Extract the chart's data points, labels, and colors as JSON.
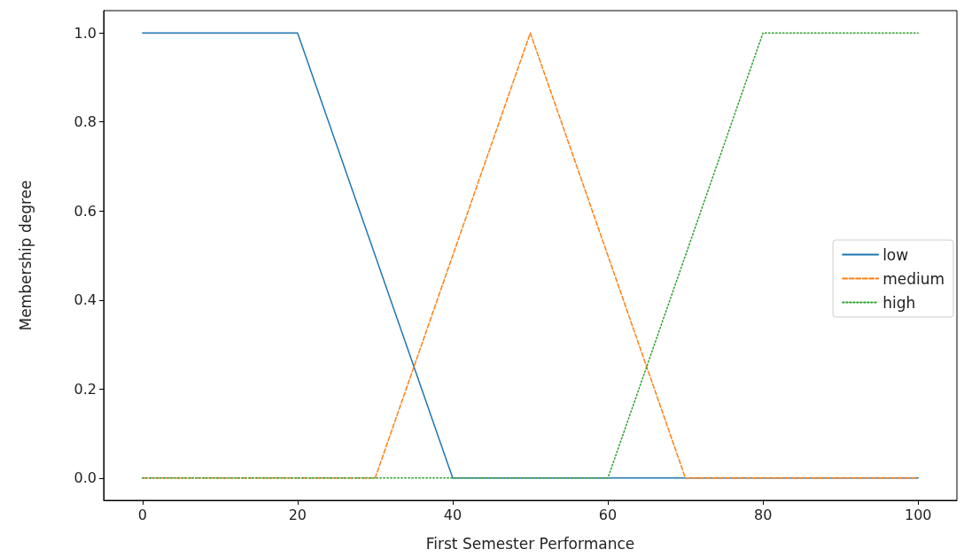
{
  "chart_data": {
    "type": "line",
    "xlabel": "First Semester Performance",
    "ylabel": "Membership degree",
    "series": [
      {
        "name": "low",
        "color": "#1f77b4",
        "line_style": "solid",
        "x": [
          0,
          20,
          40,
          100
        ],
        "values": [
          1,
          1,
          0,
          0
        ]
      },
      {
        "name": "medium",
        "color": "#ff7f0e",
        "line_style": "dashed",
        "x": [
          0,
          30,
          50,
          70,
          100
        ],
        "values": [
          0,
          0,
          1,
          0,
          0
        ]
      },
      {
        "name": "high",
        "color": "#2ca02c",
        "line_style": "dotted",
        "x": [
          0,
          60,
          80,
          100
        ],
        "values": [
          0,
          0,
          1,
          1
        ]
      }
    ],
    "xlim": [
      -5,
      105
    ],
    "xticks": [
      0,
      20,
      40,
      60,
      80,
      100
    ],
    "ylim": [
      -0.05,
      1.05
    ],
    "yticks": [
      {
        "value": 0,
        "label": "0.0"
      },
      0.2,
      0.4,
      0.6,
      0.8,
      {
        "value": 1,
        "label": "1.0"
      }
    ],
    "grid": false,
    "legend": "right",
    "marker": "none"
  }
}
